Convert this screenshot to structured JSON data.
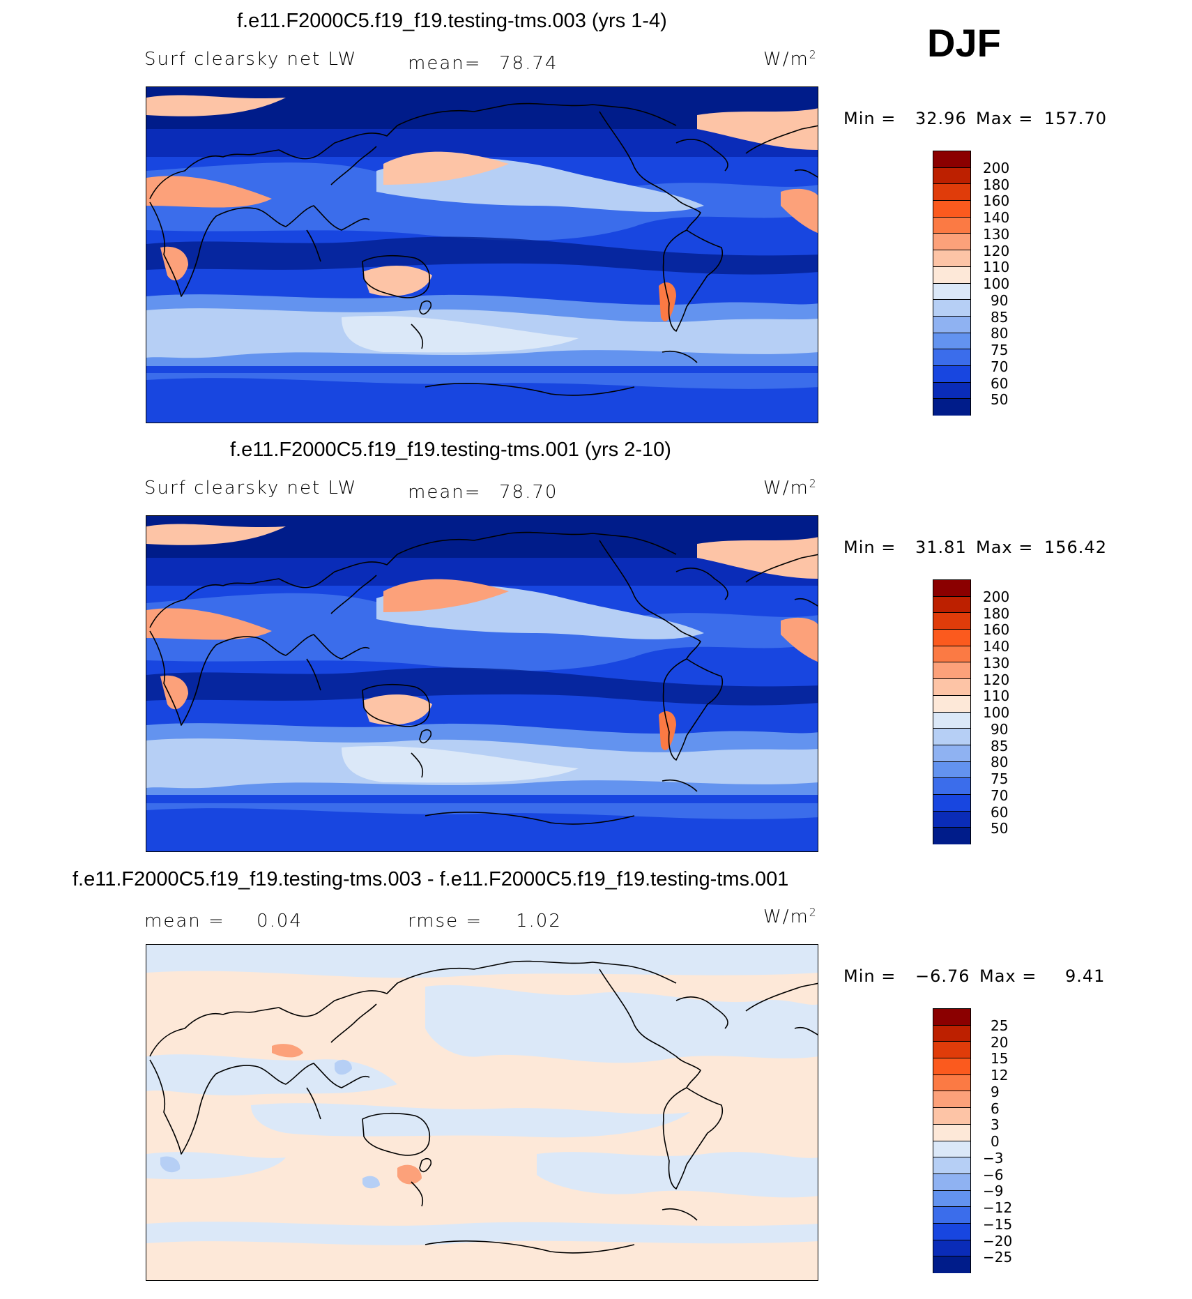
{
  "season": "DJF",
  "panels": [
    {
      "title": "f.e11.F2000C5.f19_f19.testing-tms.003 (yrs 1-4)",
      "variable": "Surf clearsky net LW",
      "stat1_label": "mean=",
      "stat1_value": "78.74",
      "stat2_label": "",
      "stat2_value": "",
      "units": "W/m",
      "units_exp": "2",
      "min_label": "Min =",
      "min_value": "32.96",
      "max_label": "Max =",
      "max_value": "157.70",
      "colorbar_labels": [
        "200",
        "180",
        "160",
        "140",
        "130",
        "120",
        "110",
        "100",
        "90",
        "85",
        "80",
        "75",
        "70",
        "60",
        "50"
      ],
      "colorbar_colors": [
        "#8b0000",
        "#bd2000",
        "#e03c0a",
        "#fb5a1e",
        "#fb7a44",
        "#fca17a",
        "#fdc4a6",
        "#fde8d8",
        "#dbe8f8",
        "#b6cff5",
        "#8fb2f2",
        "#6393ef",
        "#3b6deb",
        "#1846e0",
        "#0a2cb8",
        "#001c8a"
      ]
    },
    {
      "title": "f.e11.F2000C5.f19_f19.testing-tms.001 (yrs 2-10)",
      "variable": "Surf clearsky net LW",
      "stat1_label": "mean=",
      "stat1_value": "78.70",
      "stat2_label": "",
      "stat2_value": "",
      "units": "W/m",
      "units_exp": "2",
      "min_label": "Min =",
      "min_value": "31.81",
      "max_label": "Max =",
      "max_value": "156.42",
      "colorbar_labels": [
        "200",
        "180",
        "160",
        "140",
        "130",
        "120",
        "110",
        "100",
        "90",
        "85",
        "80",
        "75",
        "70",
        "60",
        "50"
      ],
      "colorbar_colors": [
        "#8b0000",
        "#bd2000",
        "#e03c0a",
        "#fb5a1e",
        "#fb7a44",
        "#fca17a",
        "#fdc4a6",
        "#fde8d8",
        "#dbe8f8",
        "#b6cff5",
        "#8fb2f2",
        "#6393ef",
        "#3b6deb",
        "#1846e0",
        "#0a2cb8",
        "#001c8a"
      ]
    },
    {
      "title": "f.e11.F2000C5.f19_f19.testing-tms.003 - f.e11.F2000C5.f19_f19.testing-tms.001",
      "variable": "",
      "stat1_label": "mean =",
      "stat1_value": "0.04",
      "stat2_label": "rmse =",
      "stat2_value": "1.02",
      "units": "W/m",
      "units_exp": "2",
      "min_label": "Min =",
      "min_value": "−6.76",
      "max_label": "Max =",
      "max_value": "9.41",
      "colorbar_labels": [
        "25",
        "20",
        "15",
        "12",
        "9",
        "6",
        "3",
        "0",
        "−3",
        "−6",
        "−9",
        "−12",
        "−15",
        "−20",
        "−25"
      ],
      "colorbar_colors": [
        "#8b0000",
        "#bd2000",
        "#e03c0a",
        "#fb5a1e",
        "#fb7a44",
        "#fca17a",
        "#fdc4a6",
        "#fde8d8",
        "#dbe8f8",
        "#b6cff5",
        "#8fb2f2",
        "#6393ef",
        "#3b6deb",
        "#1846e0",
        "#0a2cb8",
        "#001c8a"
      ]
    }
  ]
}
